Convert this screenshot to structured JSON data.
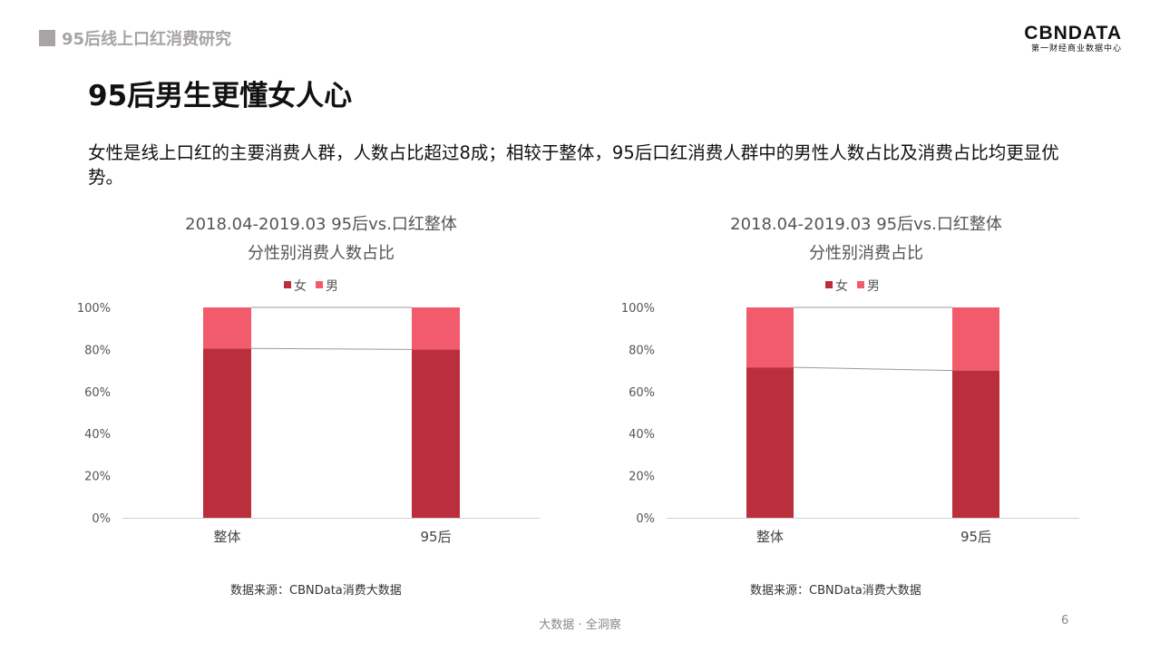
{
  "header": {
    "section": "95后线上口红消费研究",
    "logo_main": "CBNDATA",
    "logo_sub": "第一财经商业数据中心"
  },
  "title": "95后男生更懂女人心",
  "lead": "女性是线上口红的主要消费人群，人数占比超过8成；相较于整体，95后口红消费人群中的男性人数占比及消费占比均更显优势。",
  "colors": {
    "female": "#bb2f3d",
    "male": "#f25b6b"
  },
  "chart_data": [
    {
      "type": "bar",
      "stacked": true,
      "title": "2018.04-2019.03 95后vs.口红整体",
      "subtitle": "分性别消费人数占比",
      "categories": [
        "整体",
        "95后"
      ],
      "series": [
        {
          "name": "女",
          "values": [
            80.5,
            80
          ]
        },
        {
          "name": "男",
          "values": [
            19.5,
            20
          ]
        }
      ],
      "ylim": [
        0,
        100
      ],
      "yticks": [
        "0%",
        "20%",
        "40%",
        "60%",
        "80%",
        "100%"
      ],
      "legend": "top",
      "source": "数据来源：CBNData消费大数据"
    },
    {
      "type": "bar",
      "stacked": true,
      "title": "2018.04-2019.03 95后vs.口红整体",
      "subtitle": "分性别消费占比",
      "categories": [
        "整体",
        "95后"
      ],
      "series": [
        {
          "name": "女",
          "values": [
            71.5,
            70
          ]
        },
        {
          "name": "男",
          "values": [
            28.5,
            30
          ]
        }
      ],
      "ylim": [
        0,
        100
      ],
      "yticks": [
        "0%",
        "20%",
        "40%",
        "60%",
        "80%",
        "100%"
      ],
      "legend": "top",
      "source": "数据来源：CBNData消费大数据"
    }
  ],
  "footer": {
    "slogan": "大数据 · 全洞察",
    "page": "6"
  }
}
